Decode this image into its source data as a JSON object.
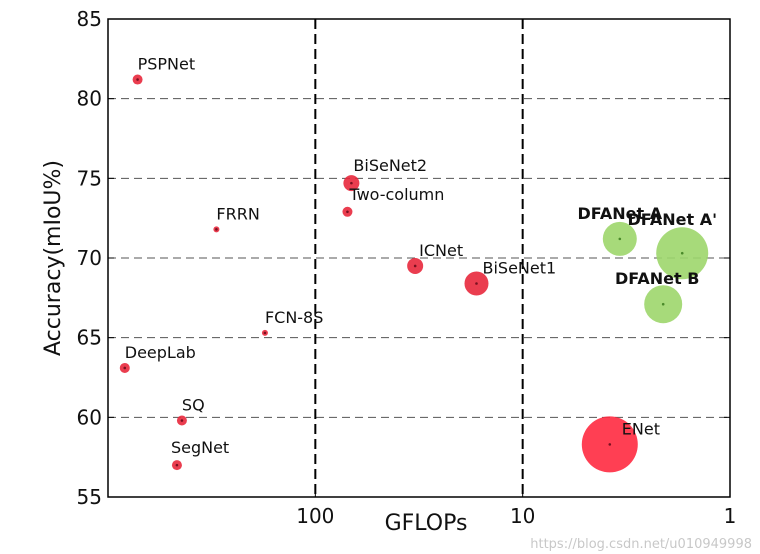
{
  "chart_data": {
    "type": "scatter",
    "title": "",
    "xlabel": "GFLOPs",
    "ylabel": "Accuracy(mIoU%)",
    "x_scale": "log",
    "x_reversed": true,
    "xlim": [
      1000,
      1
    ],
    "ylim": [
      55,
      85
    ],
    "x_ticks": [
      100,
      10,
      1
    ],
    "x_tick_labels": [
      "100",
      "10",
      "1"
    ],
    "y_ticks": [
      55,
      60,
      65,
      70,
      75,
      80,
      85
    ],
    "y_tick_labels": [
      "55",
      "60",
      "65",
      "70",
      "75",
      "80",
      "85"
    ],
    "grid": "dashed horizontal lines at y ticks; dashed vertical lines at x=100 and x=10",
    "points": [
      {
        "label": "PSPNet",
        "x": 720,
        "y": 81.2,
        "size": "small",
        "color": "#e8283c",
        "bold": false
      },
      {
        "label": "FRRN",
        "x": 300,
        "y": 71.8,
        "size": "tiny",
        "color": "#e8283c",
        "bold": false
      },
      {
        "label": "FCN-8S",
        "x": 175,
        "y": 65.3,
        "size": "tiny",
        "color": "#e8283c",
        "bold": false
      },
      {
        "label": "DeepLab",
        "x": 830,
        "y": 63.1,
        "size": "small",
        "color": "#e8283c",
        "bold": false
      },
      {
        "label": "SQ",
        "x": 440,
        "y": 59.8,
        "size": "small",
        "color": "#e8283c",
        "bold": false
      },
      {
        "label": "SegNet",
        "x": 465,
        "y": 57.0,
        "size": "small",
        "color": "#e8283c",
        "bold": false
      },
      {
        "label": "BiSeNet2",
        "x": 67,
        "y": 74.7,
        "size": "medium",
        "color": "#e8283c",
        "bold": false
      },
      {
        "label": "Two-column",
        "x": 70,
        "y": 72.9,
        "size": "small",
        "color": "#e8283c",
        "bold": false
      },
      {
        "label": "ICNet",
        "x": 33,
        "y": 69.5,
        "size": "medium",
        "color": "#e8283c",
        "bold": false
      },
      {
        "label": "BiSeNet1",
        "x": 16.7,
        "y": 68.4,
        "size": "large",
        "color": "#e8283c",
        "bold": false
      },
      {
        "label": "ENet",
        "x": 3.8,
        "y": 58.3,
        "size": "xlarge",
        "color": "#ff2a40",
        "bold": false
      },
      {
        "label": "DFANet A",
        "x": 3.4,
        "y": 71.2,
        "size": "large",
        "color": "#9dd66b",
        "bold": true
      },
      {
        "label": "DFANet A'",
        "x": 1.7,
        "y": 70.3,
        "size": "xlarge",
        "color": "#9dd66b",
        "bold": true
      },
      {
        "label": "DFANet B",
        "x": 2.1,
        "y": 67.1,
        "size": "large",
        "color": "#9dd66b",
        "bold": true
      }
    ]
  },
  "watermark": "https://blog.csdn.net/u010949998"
}
